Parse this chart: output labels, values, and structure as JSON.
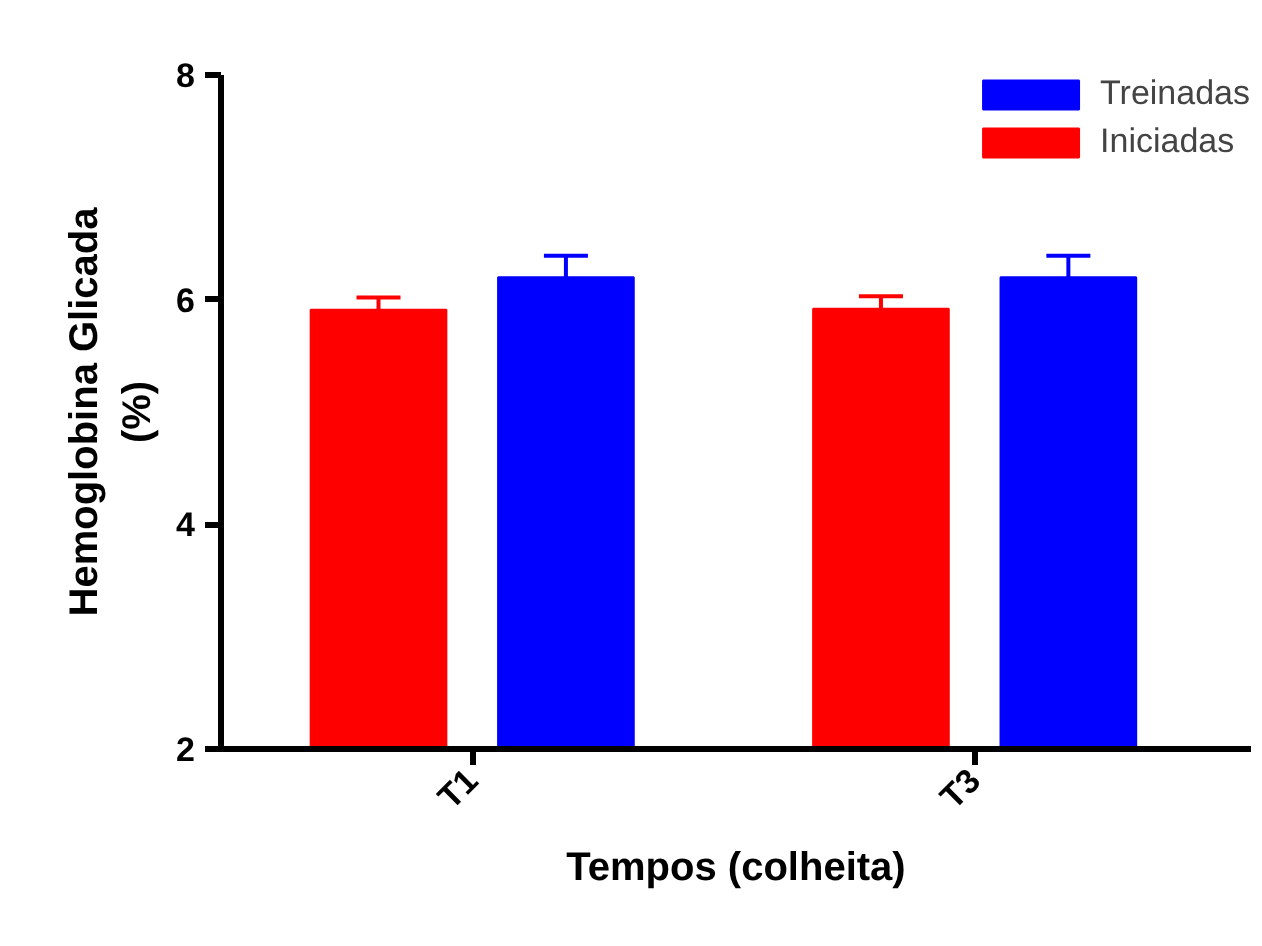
{
  "chart_data": {
    "type": "bar",
    "xlabel": "Tempos (colheita)",
    "ylabel": "Hemoglobina Glicada\n(%)",
    "categories": [
      "T1",
      "T3"
    ],
    "series": [
      {
        "name": "Iniciadas",
        "color": "#ff0000",
        "values": [
          5.91,
          5.92
        ],
        "errors": [
          [
            5.91,
            6.02
          ],
          [
            5.92,
            6.03
          ]
        ]
      },
      {
        "name": "Treinadas",
        "color": "#0000ff",
        "values": [
          6.2,
          6.2
        ],
        "errors": [
          [
            6.2,
            6.39
          ],
          [
            6.2,
            6.39
          ]
        ]
      }
    ],
    "ylim": [
      2,
      8
    ],
    "yticks": [
      2,
      4,
      6,
      8
    ],
    "legend": "top right",
    "grid": false
  }
}
